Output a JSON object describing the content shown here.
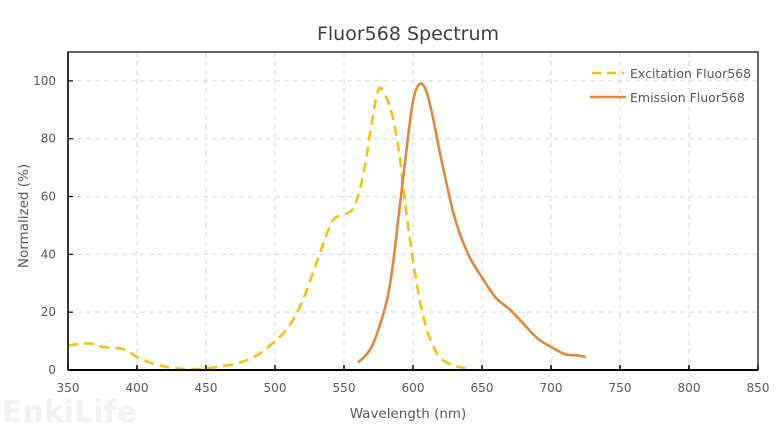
{
  "chart_data": {
    "type": "line",
    "title": "Fluor568  Spectrum",
    "xlabel": "Wavelength (nm)",
    "ylabel": "Normalized (%)",
    "xlim": [
      350,
      850
    ],
    "ylim": [
      0,
      110
    ],
    "xticks": [
      350,
      400,
      450,
      500,
      550,
      600,
      650,
      700,
      750,
      800,
      850
    ],
    "yticks": [
      0,
      20,
      40,
      60,
      80,
      100
    ],
    "grid": true,
    "legend_position": "top-right",
    "series": [
      {
        "name": "Excitation Fluor568",
        "style": "dashed",
        "color": "#F2C40F",
        "x": [
          350,
          365,
          375,
          390,
          400,
          410,
          420,
          430,
          440,
          450,
          460,
          470,
          480,
          490,
          500,
          510,
          520,
          530,
          540,
          545,
          555,
          560,
          565,
          570,
          575,
          580,
          585,
          590,
          595,
          600,
          605,
          610,
          615,
          620,
          630,
          640
        ],
        "y": [
          8.5,
          9.2,
          8,
          7.2,
          4.5,
          2.5,
          1.2,
          0.5,
          0.3,
          0.5,
          1.2,
          2,
          3.5,
          6,
          10,
          15,
          24,
          37,
          50,
          53,
          55,
          60,
          70,
          85,
          97,
          95,
          88,
          75,
          55,
          38,
          24,
          14,
          8,
          4,
          1.5,
          0.5
        ]
      },
      {
        "name": "Emission Fluor568",
        "style": "solid",
        "color": "#E0893A",
        "x": [
          560,
          570,
          580,
          585,
          590,
          595,
          600,
          605,
          610,
          615,
          620,
          630,
          640,
          650,
          660,
          670,
          680,
          690,
          700,
          710,
          720,
          725
        ],
        "y": [
          2.5,
          8,
          22,
          35,
          55,
          75,
          93,
          99,
          96,
          86,
          74,
          53,
          40,
          32,
          25,
          21,
          16,
          11,
          8,
          5.5,
          5,
          4.5
        ]
      }
    ]
  },
  "watermark": "EnkiLife",
  "colors": {
    "excitation": "#F2C40F",
    "emission": "#E0893A",
    "grid": "#d9d9d9",
    "axis": "#000000"
  }
}
